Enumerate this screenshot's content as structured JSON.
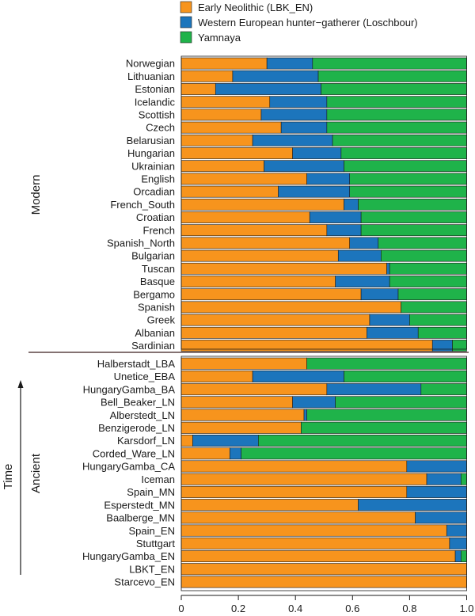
{
  "chart_data": {
    "type": "bar",
    "orientation": "horizontal",
    "stacked": true,
    "legend": {
      "placement": "top",
      "entries": [
        {
          "name": "Early Neolithic (LBK_EN)",
          "color": "#f7941d"
        },
        {
          "name": "Western European hunter−gatherer (Loschbour)",
          "color": "#1c75bc"
        },
        {
          "name": "Yamnaya",
          "color": "#1fb34a"
        }
      ]
    },
    "xlim": [
      0,
      1
    ],
    "xticks": [
      "0",
      "0.2",
      "0.4",
      "0.6",
      "0.8",
      "1.0"
    ],
    "groups": [
      {
        "label": "Modern",
        "categories": [
          "Norwegian",
          "Lithuanian",
          "Estonian",
          "Icelandic",
          "Scottish",
          "Czech",
          "Belarusian",
          "Hungarian",
          "Ukrainian",
          "English",
          "Orcadian",
          "French_South",
          "Croatian",
          "French",
          "Spanish_North",
          "Bulgarian",
          "Tuscan",
          "Basque",
          "Bergamo",
          "Spanish",
          "Greek",
          "Albanian",
          "Sardinian"
        ],
        "series": [
          {
            "name": "Early Neolithic (LBK_EN)",
            "values": [
              0.3,
              0.18,
              0.12,
              0.31,
              0.28,
              0.35,
              0.25,
              0.39,
              0.29,
              0.44,
              0.34,
              0.57,
              0.45,
              0.51,
              0.59,
              0.55,
              0.72,
              0.54,
              0.63,
              0.77,
              0.66,
              0.65,
              0.88
            ]
          },
          {
            "name": "Western European hunter−gatherer (Loschbour)",
            "values": [
              0.16,
              0.3,
              0.37,
              0.2,
              0.23,
              0.16,
              0.28,
              0.17,
              0.28,
              0.15,
              0.25,
              0.05,
              0.18,
              0.12,
              0.1,
              0.15,
              0.01,
              0.19,
              0.13,
              0.0,
              0.14,
              0.18,
              0.07
            ]
          },
          {
            "name": "Yamnaya",
            "values": [
              0.54,
              0.52,
              0.51,
              0.49,
              0.49,
              0.49,
              0.47,
              0.44,
              0.43,
              0.41,
              0.41,
              0.38,
              0.37,
              0.37,
              0.31,
              0.3,
              0.27,
              0.27,
              0.24,
              0.23,
              0.2,
              0.17,
              0.05
            ]
          }
        ]
      },
      {
        "label": "Ancient",
        "categories": [
          "Halberstadt_LBA",
          "Unetice_EBA",
          "HungaryGamba_BA",
          "Bell_Beaker_LN",
          "Alberstedt_LN",
          "Benzigerode_LN",
          "Karsdorf_LN",
          "Corded_Ware_LN",
          "HungaryGamba_CA",
          "Iceman",
          "Spain_MN",
          "Esperstedt_MN",
          "Baalberge_MN",
          "Spain_EN",
          "Stuttgart",
          "HungaryGamba_EN",
          "LBKT_EN",
          "Starcevo_EN"
        ],
        "series": [
          {
            "name": "Early Neolithic (LBK_EN)",
            "values": [
              0.44,
              0.25,
              0.51,
              0.39,
              0.43,
              0.42,
              0.04,
              0.17,
              0.79,
              0.86,
              0.79,
              0.62,
              0.82,
              0.93,
              0.94,
              0.96,
              1.0,
              1.0
            ]
          },
          {
            "name": "Western European hunter−gatherer (Loschbour)",
            "values": [
              0.0,
              0.32,
              0.33,
              0.15,
              0.01,
              0.0,
              0.23,
              0.04,
              0.21,
              0.12,
              0.21,
              0.38,
              0.18,
              0.07,
              0.06,
              0.02,
              0.0,
              0.0
            ]
          },
          {
            "name": "Yamnaya",
            "values": [
              0.56,
              0.43,
              0.16,
              0.46,
              0.56,
              0.58,
              0.73,
              0.79,
              0.0,
              0.02,
              0.0,
              0.0,
              0.0,
              0.0,
              0.0,
              0.02,
              0.0,
              0.0
            ]
          }
        ]
      }
    ],
    "side_label": "Time"
  }
}
